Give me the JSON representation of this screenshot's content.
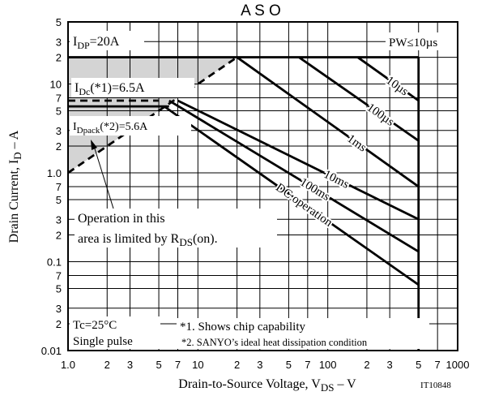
{
  "chart_data": {
    "type": "line",
    "title": "A S O",
    "x_label": [
      "Drain-to-Source Voltage, V",
      "DS",
      " – V"
    ],
    "y_label": [
      "Drain Current, I",
      "D",
      " – A"
    ],
    "code": "IT10848",
    "log_x": true,
    "log_y": true,
    "grid": true,
    "xlim": [
      1,
      1000
    ],
    "ylim": [
      0.01,
      50
    ],
    "xticks": [
      {
        "value": 1,
        "label": "1.0"
      },
      2,
      3,
      5,
      7,
      10,
      {
        "value": 20,
        "label": "2"
      },
      {
        "value": 30,
        "label": "3"
      },
      {
        "value": 50,
        "label": "5"
      },
      {
        "value": 70,
        "label": "7"
      },
      100,
      {
        "value": 200,
        "label": "2"
      },
      {
        "value": 300,
        "label": "3"
      },
      {
        "value": 500,
        "label": "5"
      },
      {
        "value": 700,
        "label": "7"
      },
      1000
    ],
    "yticks": [
      0.01,
      {
        "value": 0.02,
        "label": "2"
      },
      {
        "value": 0.03,
        "label": "3"
      },
      {
        "value": 0.05,
        "label": "5"
      },
      {
        "value": 0.07,
        "label": "7"
      },
      0.1,
      {
        "value": 0.2,
        "label": "2"
      },
      {
        "value": 0.3,
        "label": "3"
      },
      {
        "value": 0.5,
        "label": "5"
      },
      {
        "value": 0.7,
        "label": "7"
      },
      {
        "value": 1,
        "label": "1.0"
      },
      2,
      3,
      5,
      7,
      10,
      {
        "value": 20,
        "label": "2"
      },
      {
        "value": 30,
        "label": "3"
      },
      {
        "value": 50,
        "label": "5"
      }
    ],
    "series": [
      {
        "color": "#000000",
        "dashed": true,
        "x": [
          1,
          20
        ],
        "values": [
          1,
          20
        ]
      },
      {
        "color": "#000000",
        "x": [
          1,
          500
        ],
        "values": [
          20,
          20
        ]
      },
      {
        "color": "#000000",
        "x": [
          500,
          500
        ],
        "values": [
          20,
          0.01
        ]
      },
      {
        "color": "#000000",
        "dashed": true,
        "x": [
          1,
          5
        ],
        "values": [
          6.5,
          6.5
        ]
      },
      {
        "color": "#000000",
        "x": [
          1,
          6
        ],
        "values": [
          5.6,
          5.6
        ]
      },
      {
        "name": "10µs",
        "color": "#000000",
        "x": [
          170,
          500
        ],
        "values": [
          20,
          6.5
        ]
      },
      {
        "name": "100µs",
        "color": "#000000",
        "x": [
          60,
          500
        ],
        "values": [
          20,
          2.3
        ]
      },
      {
        "name": "1ms",
        "color": "#000000",
        "x": [
          20,
          500
        ],
        "values": [
          20,
          0.7
        ]
      },
      {
        "name": "10ms",
        "color": "#000000",
        "x": [
          7,
          500
        ],
        "values": [
          6.5,
          0.3
        ]
      },
      {
        "name": "100ms",
        "color": "#000000",
        "x": [
          6,
          500
        ],
        "values": [
          6.5,
          0.13
        ]
      },
      {
        "name": "DC operation",
        "color": "#000000",
        "x": [
          5.5,
          500
        ],
        "values": [
          5.6,
          0.055
        ]
      }
    ],
    "notes": {
      "idp": [
        "I",
        "DP",
        "=20A"
      ],
      "pw": "PW≤10µs",
      "idc": [
        "I",
        "Dc",
        "(*1)=6.5A"
      ],
      "idpack": [
        "I",
        "Dpack",
        "(*2)=5.6A"
      ],
      "operation": [
        "Operation in this",
        "area is limited by R",
        "DS",
        "(on)."
      ],
      "conditions": [
        "Tc=25°C",
        "Single pulse"
      ],
      "footnotes": [
        "*1. Shows chip capability",
        "*2. SANYO’s ideal heat dissipation condition"
      ]
    }
  }
}
